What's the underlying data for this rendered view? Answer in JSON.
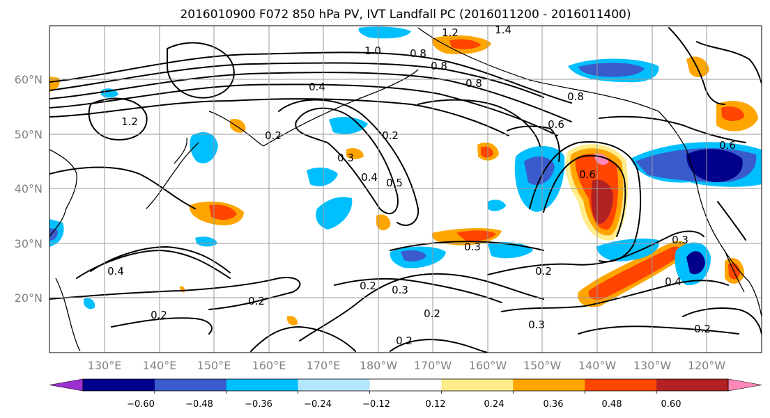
{
  "title": "2016010900 F072 850 hPa PV, IVT Landfall PC (2016011200 - 2016011400)",
  "map": {
    "lat_labels": [
      "60°N",
      "50°N",
      "40°N",
      "30°N",
      "20°N"
    ],
    "lon_labels": [
      "130°E",
      "140°E",
      "150°E",
      "160°E",
      "170°E",
      "180°W",
      "170°W",
      "160°W",
      "150°W",
      "140°W",
      "130°W",
      "120°W"
    ],
    "contour_labels": [
      "1.2",
      "1.4",
      "0.8",
      "0.8",
      "0.8",
      "1.0",
      "0.8",
      "0.4",
      "0.2",
      "0.2",
      "0.3",
      "0.4",
      "0.5",
      "0.6",
      "0.6",
      "0.3",
      "0.3",
      "0.4",
      "0.4",
      "0.2",
      "0.2",
      "0.3",
      "0.2",
      "0.2",
      "0.2",
      "0.3",
      "0.2",
      "1.2",
      "0.2",
      "0.6"
    ]
  },
  "colorbar": {
    "ticks": [
      "−0.60",
      "−0.48",
      "−0.36",
      "−0.24",
      "−0.12",
      "0.12",
      "0.24",
      "0.36",
      "0.48",
      "0.60"
    ],
    "colors": [
      "#9b30d0",
      "#00008b",
      "#3a5bcb",
      "#00bfff",
      "#b3e5fc",
      "#ffffff",
      "#ffec8b",
      "#ffa500",
      "#ff4500",
      "#b22222",
      "#ff88b8"
    ]
  }
}
